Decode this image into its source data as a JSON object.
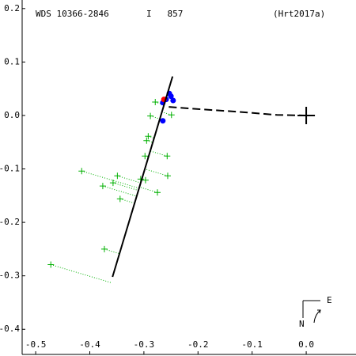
{
  "chart_data": {
    "type": "scatter",
    "title": "WDS 10366-2846",
    "subtitle": "I   857",
    "reference": "(Hrt2017a)",
    "xlim": [
      -0.525,
      0.092
    ],
    "ylim": [
      -0.447,
      0.216
    ],
    "xticks": [
      -0.5,
      -0.4,
      -0.3,
      -0.2,
      -0.1,
      {
        "value": 0,
        "label": "0.0"
      }
    ],
    "yticks": [
      0.2,
      0.1,
      {
        "value": 0,
        "label": "0.0"
      },
      -0.1,
      -0.2,
      -0.3,
      -0.4
    ],
    "compass": {
      "east": "E",
      "north": "N"
    },
    "series": [
      {
        "marker": "plus",
        "color": "#00b000",
        "residuals": true,
        "x": [
          -0.279,
          -0.288,
          -0.249,
          -0.292,
          -0.295,
          -0.298,
          -0.257,
          -0.415,
          -0.349,
          -0.256,
          -0.376,
          -0.357,
          -0.306,
          -0.297,
          -0.275,
          -0.344,
          -0.373,
          -0.472
        ],
        "values": [
          0.025,
          -0.001,
          0.001,
          -0.039,
          -0.047,
          -0.076,
          -0.076,
          -0.104,
          -0.113,
          -0.113,
          -0.132,
          -0.126,
          -0.119,
          -0.121,
          -0.144,
          -0.156,
          -0.25,
          -0.279
        ]
      },
      {
        "marker": "dot",
        "color": "#0000ff",
        "x": [
          -0.265,
          -0.253,
          -0.246,
          -0.25,
          -0.265,
          -0.259
        ],
        "values": [
          0.024,
          0.041,
          0.028,
          0.036,
          -0.01,
          0.03
        ]
      },
      {
        "marker": "dot",
        "color": "#ff0000",
        "x": [
          -0.263
        ],
        "values": [
          0.03
        ]
      },
      {
        "marker": "cross",
        "color": "#000000",
        "x": [
          0
        ],
        "values": [
          0
        ]
      }
    ],
    "lines": [
      {
        "style": "solid",
        "color": "#000000",
        "x": [
          -0.358,
          -0.247
        ],
        "values": [
          -0.302,
          0.073
        ]
      },
      {
        "style": "dashed",
        "color": "#000000",
        "x": [
          -0.254,
          -0.215,
          -0.127,
          -0.054,
          0
        ],
        "values": [
          0.016,
          0.013,
          0.007,
          0.001,
          0
        ]
      }
    ]
  }
}
